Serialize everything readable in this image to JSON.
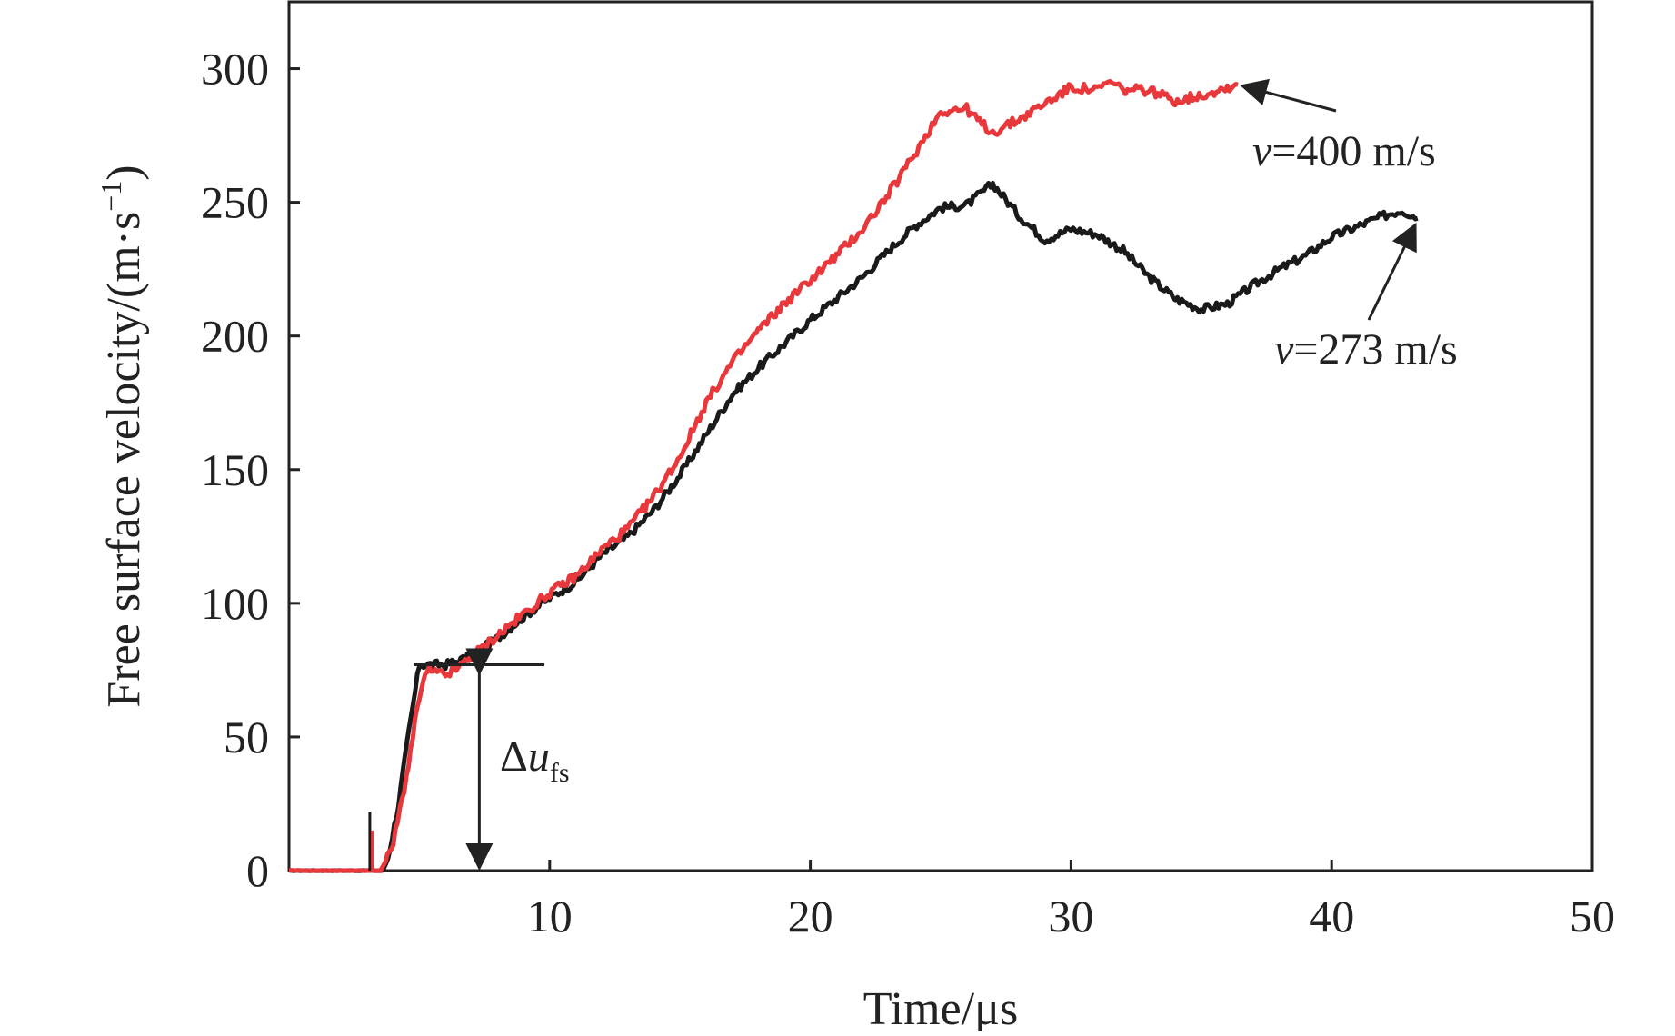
{
  "chart_data": {
    "type": "line",
    "title": "",
    "xlabel": "Time/μs",
    "ylabel": "Free surface velocity/(m·s",
    "ylabel_sup": "−1",
    "ylabel_close": ")",
    "xlim": [
      0,
      50
    ],
    "ylim": [
      0,
      325
    ],
    "xticks": [
      10,
      20,
      30,
      40,
      50
    ],
    "yticks": [
      0,
      50,
      100,
      150,
      200,
      250,
      300
    ],
    "grid": false,
    "legend": "none",
    "series": [
      {
        "name": "v=273 m/s",
        "color": "#1a1a1a",
        "points": [
          [
            0,
            0
          ],
          [
            3.0,
            0
          ],
          [
            3.6,
            0
          ],
          [
            3.8,
            5
          ],
          [
            4.2,
            25
          ],
          [
            4.6,
            52
          ],
          [
            5.0,
            77
          ],
          [
            5.5,
            77
          ],
          [
            6.0,
            77
          ],
          [
            7,
            80
          ],
          [
            8,
            87
          ],
          [
            9,
            95
          ],
          [
            10,
            102
          ],
          [
            11,
            108
          ],
          [
            12,
            118
          ],
          [
            13,
            125
          ],
          [
            14,
            135
          ],
          [
            15,
            148
          ],
          [
            16,
            163
          ],
          [
            17,
            178
          ],
          [
            18,
            188
          ],
          [
            19,
            197
          ],
          [
            20,
            206
          ],
          [
            21,
            214
          ],
          [
            22,
            222
          ],
          [
            23,
            232
          ],
          [
            24,
            241
          ],
          [
            25,
            248
          ],
          [
            26,
            249
          ],
          [
            27,
            257
          ],
          [
            28,
            245
          ],
          [
            29,
            236
          ],
          [
            30,
            240
          ],
          [
            31,
            238
          ],
          [
            32,
            232
          ],
          [
            33,
            222
          ],
          [
            34,
            214
          ],
          [
            35,
            210
          ],
          [
            36,
            212
          ],
          [
            37,
            219
          ],
          [
            38,
            225
          ],
          [
            39,
            230
          ],
          [
            40,
            237
          ],
          [
            41,
            241
          ],
          [
            42,
            245
          ],
          [
            42.7,
            247
          ],
          [
            43.3,
            244
          ]
        ]
      },
      {
        "name": "v=400 m/s",
        "color": "#e8383b",
        "points": [
          [
            0,
            0
          ],
          [
            3.0,
            0
          ],
          [
            3.5,
            0
          ],
          [
            3.7,
            3
          ],
          [
            4.0,
            10
          ],
          [
            4.5,
            35
          ],
          [
            5.0,
            65
          ],
          [
            5.3,
            75
          ],
          [
            5.6,
            74
          ],
          [
            6.0,
            73
          ],
          [
            6.5,
            76
          ],
          [
            7,
            80
          ],
          [
            8,
            88
          ],
          [
            9,
            96
          ],
          [
            10,
            104
          ],
          [
            11,
            110
          ],
          [
            12,
            120
          ],
          [
            13,
            128
          ],
          [
            14,
            140
          ],
          [
            15,
            155
          ],
          [
            16,
            175
          ],
          [
            17,
            190
          ],
          [
            18,
            202
          ],
          [
            19,
            212
          ],
          [
            20,
            221
          ],
          [
            21,
            230
          ],
          [
            22,
            240
          ],
          [
            23,
            253
          ],
          [
            24,
            268
          ],
          [
            25,
            284
          ],
          [
            26,
            285
          ],
          [
            26.5,
            280
          ],
          [
            27,
            276
          ],
          [
            28,
            281
          ],
          [
            29,
            287
          ],
          [
            30,
            293
          ],
          [
            31,
            292
          ],
          [
            31.5,
            295
          ],
          [
            32,
            292
          ],
          [
            33,
            292
          ],
          [
            34,
            288
          ],
          [
            35,
            290
          ],
          [
            36,
            293
          ],
          [
            36.4,
            294
          ]
        ]
      }
    ],
    "annotations": {
      "step_level": 77,
      "step_line_x": [
        4.8,
        9.8
      ],
      "arrow_x": 7.3,
      "delta_symbol": "Δ",
      "delta_var": "u",
      "delta_sub": "fs",
      "label_400_prefix": "v",
      "label_400_value": "=400 m/s",
      "label_273_prefix": "v",
      "label_273_value": "=273 m/s"
    }
  }
}
